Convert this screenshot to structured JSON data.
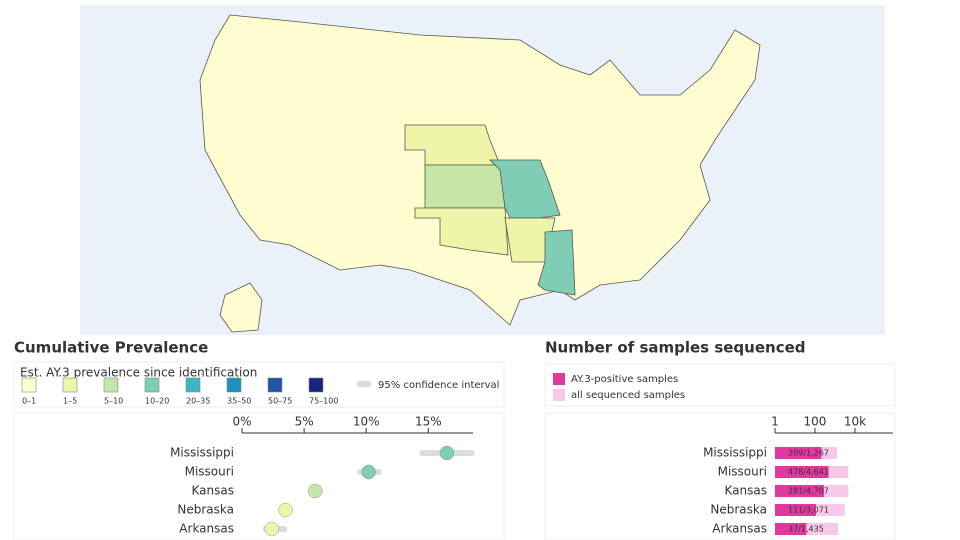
{
  "map": {
    "legend": {
      "title": "Est. AY.3 prevalence since identification",
      "labels": [
        "0–1",
        "1–5",
        "5–10",
        "10–20",
        "20–35",
        "35–50",
        "50–75",
        "75–100"
      ],
      "colors": [
        "#fffdd0",
        "#eef5a8",
        "#c5e6a6",
        "#7ecdb4",
        "#40b6c4",
        "#1d91c0",
        "#2255a4",
        "#1a2580"
      ],
      "ci_label": "95% confidence interval"
    }
  },
  "chart_data": [
    {
      "type": "dot",
      "title": "Cumulative Prevalence",
      "categories": [
        "Mississippi",
        "Missouri",
        "Kansas",
        "Nebraska",
        "Arkansas"
      ],
      "values": [
        16.5,
        10.2,
        5.9,
        3.5,
        2.4
      ],
      "ci_low": [
        14.5,
        9.5,
        5.6,
        3.2,
        1.9
      ],
      "ci_high": [
        18.5,
        11,
        6.2,
        3.8,
        3.4
      ],
      "colors": [
        "#7ecdb4",
        "#7ecdb4",
        "#c5e6a6",
        "#eef5a8",
        "#eef5a8"
      ],
      "ci_color": "#dcdcdc",
      "xlim": [
        0,
        18.6
      ],
      "xticks": [
        {
          "value": 0,
          "label": "0%"
        },
        {
          "value": 5,
          "label": "5%"
        },
        {
          "value": 10,
          "label": "10%"
        },
        {
          "value": 15,
          "label": "15%"
        }
      ]
    },
    {
      "type": "bar",
      "title": "Number of samples sequenced",
      "log": true,
      "categories": [
        "Mississippi",
        "Missouri",
        "Kansas",
        "Nebraska",
        "Arkansas"
      ],
      "series": [
        {
          "name": "AY.3-positive samples",
          "color": "#e0389f",
          "values": [
            209,
            478,
            281,
            111,
            37
          ]
        },
        {
          "name": "all sequenced samples",
          "color": "#f7c8ea",
          "values": [
            1267,
            4641,
            4707,
            3071,
            1435
          ],
          "value_labels": [
            "209/1,267",
            "478/4,641",
            "281/4,707",
            "111/3,071",
            "37/1,435"
          ]
        }
      ],
      "xlim": [
        1,
        800000
      ],
      "xticks": [
        1,
        100,
        {
          "value": 10000,
          "label": "10k"
        }
      ]
    }
  ]
}
